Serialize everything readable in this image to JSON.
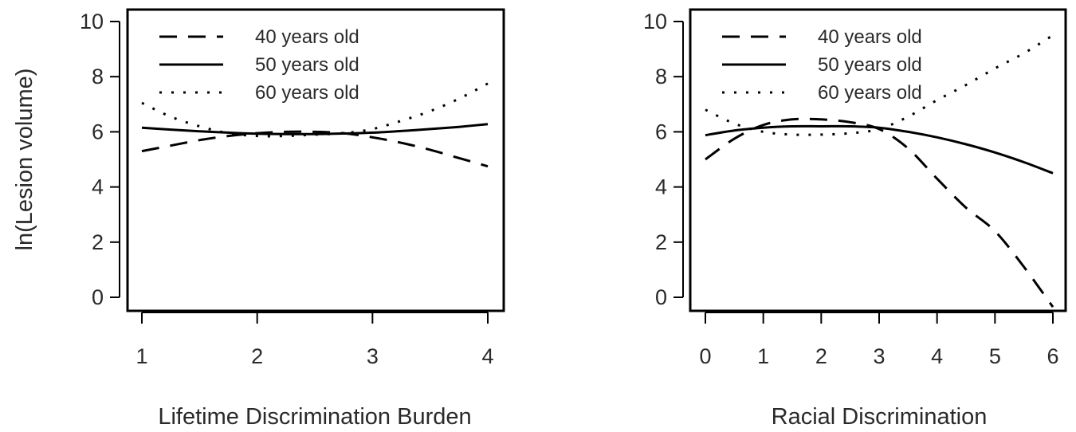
{
  "figure": {
    "shared_ylabel": "ln(Lesion volume)"
  },
  "chart_data": [
    {
      "type": "line",
      "title": "",
      "xlabel": "Lifetime Discrimination Burden",
      "ylabel": "ln(Lesion volume)",
      "xlim": [
        1,
        4
      ],
      "ylim": [
        0,
        10
      ],
      "xticks": [
        1,
        2,
        3,
        4
      ],
      "yticks": [
        0,
        2,
        4,
        6,
        8,
        10
      ],
      "grid": false,
      "legend_position": "top-left",
      "x": [
        1,
        1.25,
        1.5,
        1.75,
        2,
        2.25,
        2.5,
        2.75,
        3,
        3.25,
        3.5,
        3.75,
        4
      ],
      "series": [
        {
          "name": "40 years old",
          "dash": "dashed",
          "values": [
            5.3,
            5.5,
            5.7,
            5.85,
            5.95,
            6.0,
            6.0,
            5.95,
            5.8,
            5.6,
            5.35,
            5.05,
            4.75
          ]
        },
        {
          "name": "50 years old",
          "dash": "solid",
          "values": [
            6.15,
            6.08,
            6.02,
            5.97,
            5.93,
            5.92,
            5.92,
            5.94,
            5.97,
            6.03,
            6.1,
            6.18,
            6.28
          ]
        },
        {
          "name": "60 years old",
          "dash": "dotted",
          "values": [
            7.05,
            6.55,
            6.2,
            5.95,
            5.85,
            5.85,
            5.9,
            5.95,
            6.1,
            6.4,
            6.75,
            7.2,
            7.75
          ]
        }
      ]
    },
    {
      "type": "line",
      "title": "",
      "xlabel": "Racial Discrimination",
      "ylabel": "",
      "xlim": [
        0,
        6
      ],
      "ylim": [
        0,
        10
      ],
      "xticks": [
        0,
        1,
        2,
        3,
        4,
        5,
        6
      ],
      "yticks": [
        0,
        2,
        4,
        6,
        8,
        10
      ],
      "grid": false,
      "legend_position": "top-left",
      "x": [
        0,
        0.5,
        1,
        1.5,
        2,
        2.5,
        3,
        3.5,
        4,
        4.5,
        5,
        5.5,
        6
      ],
      "series": [
        {
          "name": "40 years old",
          "dash": "dashed",
          "values": [
            5.0,
            5.75,
            6.25,
            6.45,
            6.45,
            6.35,
            6.1,
            5.4,
            4.3,
            3.25,
            2.4,
            1.1,
            -0.35
          ]
        },
        {
          "name": "50 years old",
          "dash": "solid",
          "values": [
            5.88,
            6.05,
            6.15,
            6.2,
            6.2,
            6.2,
            6.15,
            6.0,
            5.8,
            5.55,
            5.25,
            4.9,
            4.5
          ]
        },
        {
          "name": "60 years old",
          "dash": "dotted",
          "values": [
            6.8,
            6.3,
            6.0,
            5.9,
            5.9,
            5.95,
            6.1,
            6.55,
            7.15,
            7.7,
            8.3,
            8.85,
            9.5
          ]
        }
      ]
    }
  ]
}
